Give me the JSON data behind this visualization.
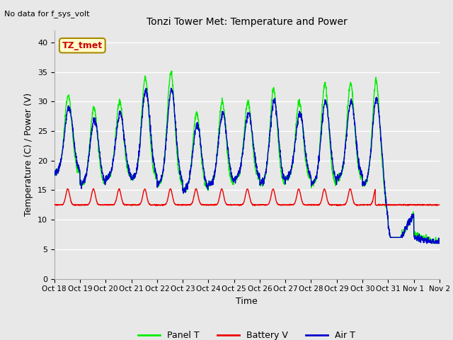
{
  "title": "Tonzi Tower Met: Temperature and Power",
  "top_left_text": "No data for f_sys_volt",
  "xlabel": "Time",
  "ylabel": "Temperature (C) / Power (V)",
  "ylim": [
    0,
    42
  ],
  "yticks": [
    0,
    5,
    10,
    15,
    20,
    25,
    30,
    35,
    40
  ],
  "xtick_labels": [
    "Oct 18",
    "Oct 19",
    "Oct 20",
    "Oct 21",
    "Oct 22",
    "Oct 23",
    "Oct 24",
    "Oct 25",
    "Oct 26",
    "Oct 27",
    "Oct 28",
    "Oct 29",
    "Oct 30",
    "Oct 31",
    "Nov 1",
    "Nov 2"
  ],
  "annotation_label": "TZ_tmet",
  "annotation_box_color": "#ffffcc",
  "annotation_box_edge": "#aa8800",
  "annotation_text_color": "#cc0000",
  "bg_color": "#e8e8e8",
  "plot_bg_color": "#e8e8e8",
  "panel_color": "#00ee00",
  "battery_color": "#ee0000",
  "air_color": "#0000cc",
  "legend_labels": [
    "Panel T",
    "Battery V",
    "Air T"
  ],
  "n_days": 15,
  "pts_per_hour": 6
}
